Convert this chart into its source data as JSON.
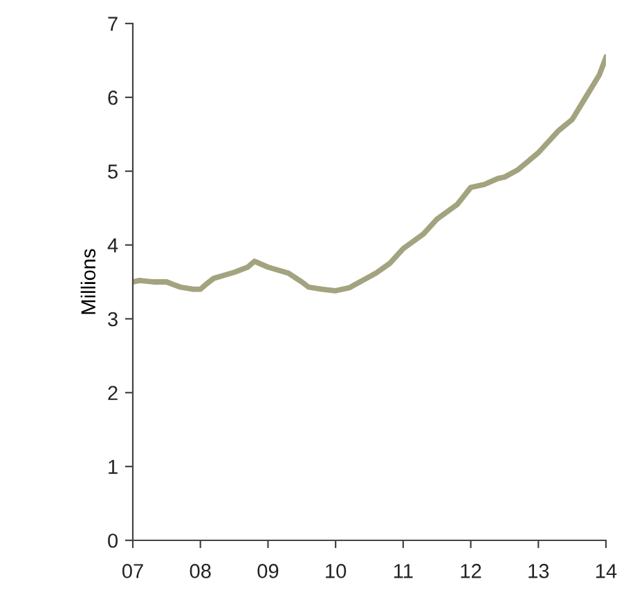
{
  "chart_data": {
    "type": "line",
    "ylabel": "Millions",
    "x": [
      7.0,
      7.1,
      7.3,
      7.5,
      7.7,
      7.9,
      8.0,
      8.1,
      8.2,
      8.5,
      8.7,
      8.8,
      9.0,
      9.3,
      9.5,
      9.6,
      9.8,
      10.0,
      10.2,
      10.4,
      10.6,
      10.8,
      11.0,
      11.3,
      11.5,
      11.8,
      12.0,
      12.2,
      12.4,
      12.5,
      12.7,
      13.0,
      13.3,
      13.5,
      13.7,
      13.9,
      14.0
    ],
    "series": [
      {
        "color": "#a4a37f",
        "values": [
          3.5,
          3.52,
          3.5,
          3.5,
          3.43,
          3.4,
          3.4,
          3.48,
          3.55,
          3.63,
          3.7,
          3.78,
          3.7,
          3.62,
          3.5,
          3.43,
          3.4,
          3.38,
          3.42,
          3.52,
          3.62,
          3.75,
          3.95,
          4.15,
          4.35,
          4.55,
          4.78,
          4.82,
          4.9,
          4.92,
          5.02,
          5.25,
          5.55,
          5.7,
          6.0,
          6.3,
          6.54
        ]
      }
    ],
    "xlim": [
      7,
      14
    ],
    "ylim": [
      0,
      7
    ],
    "xticks": [
      {
        "value": 7,
        "label": "07"
      },
      {
        "value": 8,
        "label": "08"
      },
      {
        "value": 9,
        "label": "09"
      },
      {
        "value": 10,
        "label": "10"
      },
      {
        "value": 11,
        "label": "11"
      },
      {
        "value": 12,
        "label": "12"
      },
      {
        "value": 13,
        "label": "13"
      },
      {
        "value": 14,
        "label": "14"
      }
    ],
    "yticks": [
      0,
      1,
      2,
      3,
      4,
      5,
      6,
      7
    ],
    "grid": false,
    "marker": "none",
    "line_style": "solid"
  }
}
